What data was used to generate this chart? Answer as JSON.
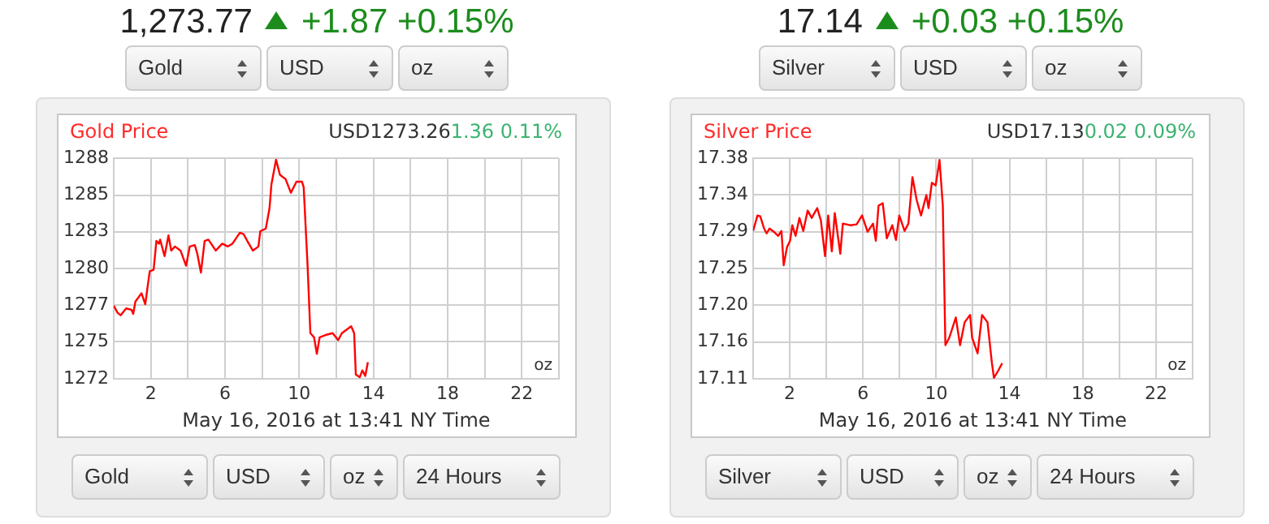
{
  "chart_data": [
    {
      "type": "line",
      "title": "Gold Price",
      "xlabel": "May 16, 2016 at 13:41 NY Time",
      "grid": true,
      "legend": false,
      "marker": "none",
      "line_style": "solid",
      "xlim": [
        0,
        24
      ],
      "xticks": [
        {
          "value": 0,
          "label": null
        },
        2,
        {
          "value": 4,
          "label": null
        },
        6,
        {
          "value": 8,
          "label": null
        },
        10,
        {
          "value": 12,
          "label": null
        },
        14,
        {
          "value": 16,
          "label": null
        },
        18,
        {
          "value": 20,
          "label": null
        },
        22,
        {
          "value": 24,
          "label": null
        }
      ],
      "ylim": [
        1272,
        1288
      ],
      "yticks": [
        1272,
        {
          "value": 1274.67,
          "label": "1275"
        },
        {
          "value": 1277.33,
          "label": "1277"
        },
        1280,
        {
          "value": 1282.67,
          "label": "1283"
        },
        {
          "value": 1285.33,
          "label": "1285"
        },
        1288
      ],
      "x": [
        0,
        0.2,
        0.37,
        0.67,
        0.96,
        1.05,
        1.17,
        1.5,
        1.7,
        1.94,
        2.15,
        2.3,
        2.44,
        2.5,
        2.74,
        2.95,
        3.1,
        3.3,
        3.6,
        3.9,
        4.1,
        4.37,
        4.5,
        4.7,
        4.9,
        5.1,
        5.5,
        5.85,
        6.15,
        6.4,
        6.8,
        7.0,
        7.2,
        7.5,
        7.8,
        7.9,
        8.2,
        8.4,
        8.5,
        8.75,
        8.96,
        9.26,
        9.55,
        9.85,
        10.15,
        10.24,
        10.45,
        10.6,
        10.8,
        10.95,
        11.1,
        11.5,
        11.8,
        12.1,
        12.3,
        12.8,
        12.96,
        13.05,
        13.26,
        13.4,
        13.56,
        13.7
      ],
      "series": [
        {
          "color": "#ff0000",
          "values": [
            1277.3,
            1276.8,
            1276.6,
            1277.1,
            1277.0,
            1276.7,
            1277.6,
            1278.2,
            1277.4,
            1279.8,
            1279.9,
            1282.0,
            1281.8,
            1282.1,
            1280.9,
            1282.4,
            1281.3,
            1281.6,
            1281.3,
            1280.2,
            1281.6,
            1281.7,
            1281.1,
            1279.7,
            1282.0,
            1282.1,
            1281.3,
            1281.8,
            1281.6,
            1281.8,
            1282.6,
            1282.5,
            1282.0,
            1281.3,
            1281.6,
            1282.7,
            1282.9,
            1284.4,
            1286.1,
            1287.9,
            1286.8,
            1286.5,
            1285.5,
            1286.3,
            1286.3,
            1285.9,
            1280.2,
            1275.3,
            1275.0,
            1273.8,
            1275.0,
            1275.2,
            1275.3,
            1274.8,
            1275.3,
            1275.8,
            1275.3,
            1272.3,
            1272.1,
            1272.6,
            1272.2,
            1273.2
          ]
        }
      ],
      "annotations": [
        "1,273.77",
        "+1.87 +0.15%",
        "Gold",
        "USD",
        "oz",
        "USD1273.26",
        "1.36 0.11%",
        "oz",
        "Gold",
        "USD",
        "oz",
        "24 Hours"
      ]
    },
    {
      "type": "line",
      "title": "Silver Price",
      "xlabel": "May 16, 2016 at 13:41 NY Time",
      "grid": true,
      "legend": false,
      "marker": "none",
      "line_style": "solid",
      "xlim": [
        0,
        24
      ],
      "xticks": [
        {
          "value": 0,
          "label": null
        },
        2,
        {
          "value": 4,
          "label": null
        },
        6,
        {
          "value": 8,
          "label": null
        },
        10,
        {
          "value": 12,
          "label": null
        },
        14,
        {
          "value": 16,
          "label": null
        },
        18,
        {
          "value": 20,
          "label": null
        },
        22,
        {
          "value": 24,
          "label": null
        }
      ],
      "ylim": [
        17.11,
        17.38
      ],
      "yticks": [
        17.11,
        {
          "value": 17.155,
          "label": "17.16"
        },
        {
          "value": 17.2,
          "label": "17.20"
        },
        {
          "value": 17.245,
          "label": "17.25"
        },
        17.29,
        {
          "value": 17.335,
          "label": "17.34"
        },
        17.38
      ],
      "x": [
        0,
        0.24,
        0.39,
        0.6,
        0.74,
        0.9,
        1.13,
        1.37,
        1.55,
        1.67,
        1.85,
        2.02,
        2.14,
        2.32,
        2.53,
        2.74,
        2.98,
        3.2,
        3.5,
        3.7,
        3.93,
        4.1,
        4.3,
        4.46,
        4.76,
        4.9,
        5.3,
        5.65,
        5.95,
        6.25,
        6.55,
        6.7,
        6.85,
        7.08,
        7.3,
        7.6,
        7.8,
        7.98,
        8.27,
        8.48,
        8.7,
        8.93,
        9.17,
        9.46,
        9.58,
        9.76,
        9.97,
        10.18,
        10.36,
        10.5,
        10.71,
        11.07,
        11.3,
        11.55,
        11.85,
        11.96,
        12.26,
        12.5,
        12.8,
        13.04,
        13.15,
        13.39,
        13.6
      ],
      "series": [
        {
          "color": "#ff0000",
          "values": [
            17.291,
            17.31,
            17.309,
            17.294,
            17.288,
            17.294,
            17.29,
            17.285,
            17.291,
            17.249,
            17.271,
            17.279,
            17.298,
            17.285,
            17.307,
            17.291,
            17.316,
            17.307,
            17.319,
            17.304,
            17.26,
            17.31,
            17.266,
            17.313,
            17.263,
            17.3,
            17.298,
            17.299,
            17.31,
            17.29,
            17.3,
            17.279,
            17.322,
            17.325,
            17.282,
            17.298,
            17.28,
            17.31,
            17.291,
            17.3,
            17.357,
            17.329,
            17.31,
            17.335,
            17.319,
            17.35,
            17.347,
            17.378,
            17.322,
            17.151,
            17.16,
            17.185,
            17.151,
            17.179,
            17.188,
            17.16,
            17.141,
            17.188,
            17.179,
            17.129,
            17.111,
            17.12,
            17.129
          ]
        }
      ],
      "annotations": [
        "17.14",
        "+0.03 +0.15%",
        "Silver",
        "USD",
        "oz",
        "USD17.13",
        "0.02 0.09%",
        "oz",
        "Silver",
        "USD",
        "oz",
        "24 Hours"
      ]
    }
  ]
}
